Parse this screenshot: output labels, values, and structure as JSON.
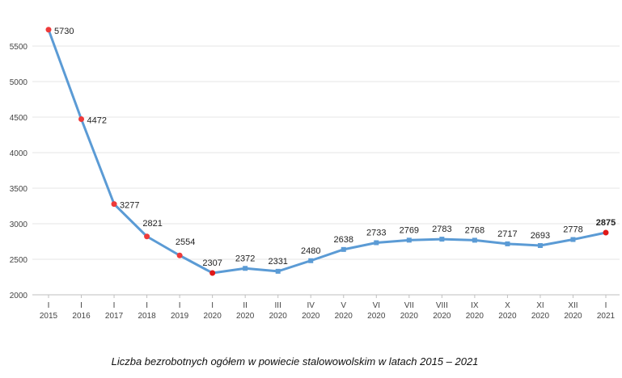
{
  "caption": "Liczba bezrobotnych ogółem w powiecie stalowowolskim w latach 2015 – 2021",
  "chart_data": {
    "type": "line",
    "title": "",
    "xlabel": "",
    "ylabel": "",
    "ylim": [
      2000,
      5700
    ],
    "yticks": [
      2000,
      2500,
      3000,
      3500,
      4000,
      4500,
      5000,
      5500
    ],
    "grid": true,
    "categories": [
      [
        "I",
        "2015"
      ],
      [
        "I",
        "2016"
      ],
      [
        "I",
        "2017"
      ],
      [
        "I",
        "2018"
      ],
      [
        "I",
        "2019"
      ],
      [
        "I",
        "2020"
      ],
      [
        "II",
        "2020"
      ],
      [
        "III",
        "2020"
      ],
      [
        "IV",
        "2020"
      ],
      [
        "V",
        "2020"
      ],
      [
        "VI",
        "2020"
      ],
      [
        "VII",
        "2020"
      ],
      [
        "VIII",
        "2020"
      ],
      [
        "IX",
        "2020"
      ],
      [
        "X",
        "2020"
      ],
      [
        "XI",
        "2020"
      ],
      [
        "XII",
        "2020"
      ],
      [
        "I",
        "2021"
      ]
    ],
    "series": [
      {
        "values": [
          5730,
          4472,
          3277,
          2821,
          2554,
          2307,
          2372,
          2331,
          2480,
          2638,
          2733,
          2769,
          2783,
          2768,
          2717,
          2693,
          2778,
          2875
        ],
        "color": "#5b9bd5",
        "marker_colors": [
          "#ee3a3a",
          "#ee3a3a",
          "#ee3a3a",
          "#ee3a3a",
          "#ee3a3a",
          "#e01818",
          "#5b9bd5",
          "#5b9bd5",
          "#5b9bd5",
          "#5b9bd5",
          "#5b9bd5",
          "#5b9bd5",
          "#5b9bd5",
          "#5b9bd5",
          "#5b9bd5",
          "#5b9bd5",
          "#5b9bd5",
          "#e01818"
        ],
        "bold_labels": [
          17
        ]
      }
    ]
  }
}
